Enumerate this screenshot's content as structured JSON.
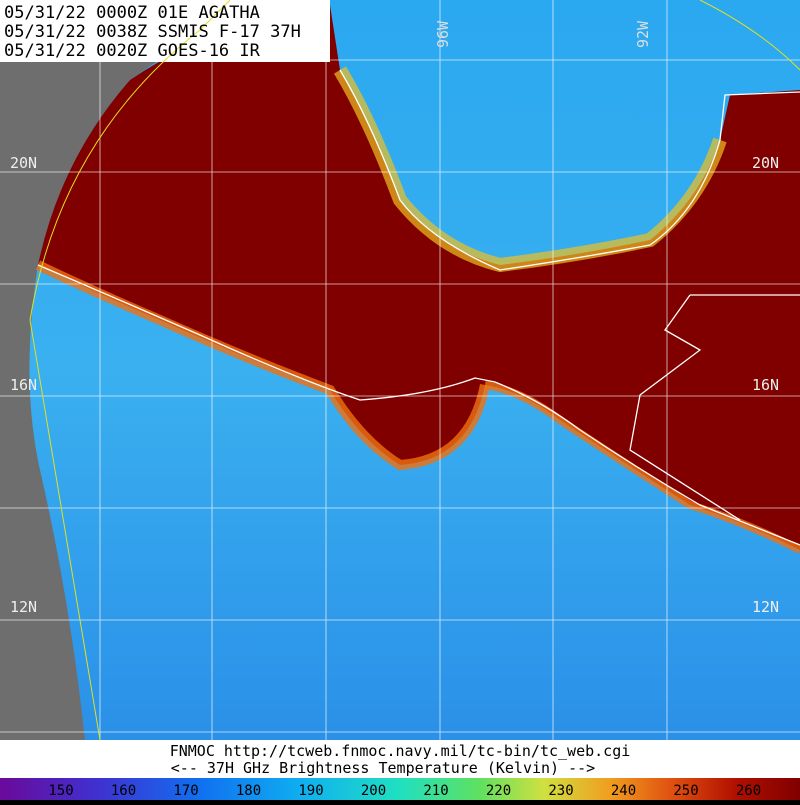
{
  "header": {
    "lines": [
      "05/31/22 0000Z  01E AGATHA",
      "05/31/22 0038Z  SSMIS F-17 37H",
      "05/31/22 0020Z  GOES-16 IR"
    ]
  },
  "grid_labels": {
    "lon": [
      "96W",
      "92W"
    ],
    "lat_left": [
      "20N",
      "16N",
      "12N"
    ],
    "lat_right": [
      "20N",
      "16N",
      "12N"
    ]
  },
  "footer": {
    "source": "FNMOC  http://tcweb.fnmoc.navy.mil/tc-bin/tc_web.cgi",
    "caption": "<--   37H GHz Brightness Temperature (Kelvin)   -->"
  },
  "colorbar": {
    "ticks": [
      150,
      160,
      170,
      180,
      190,
      200,
      210,
      220,
      230,
      240,
      250,
      260
    ]
  }
}
